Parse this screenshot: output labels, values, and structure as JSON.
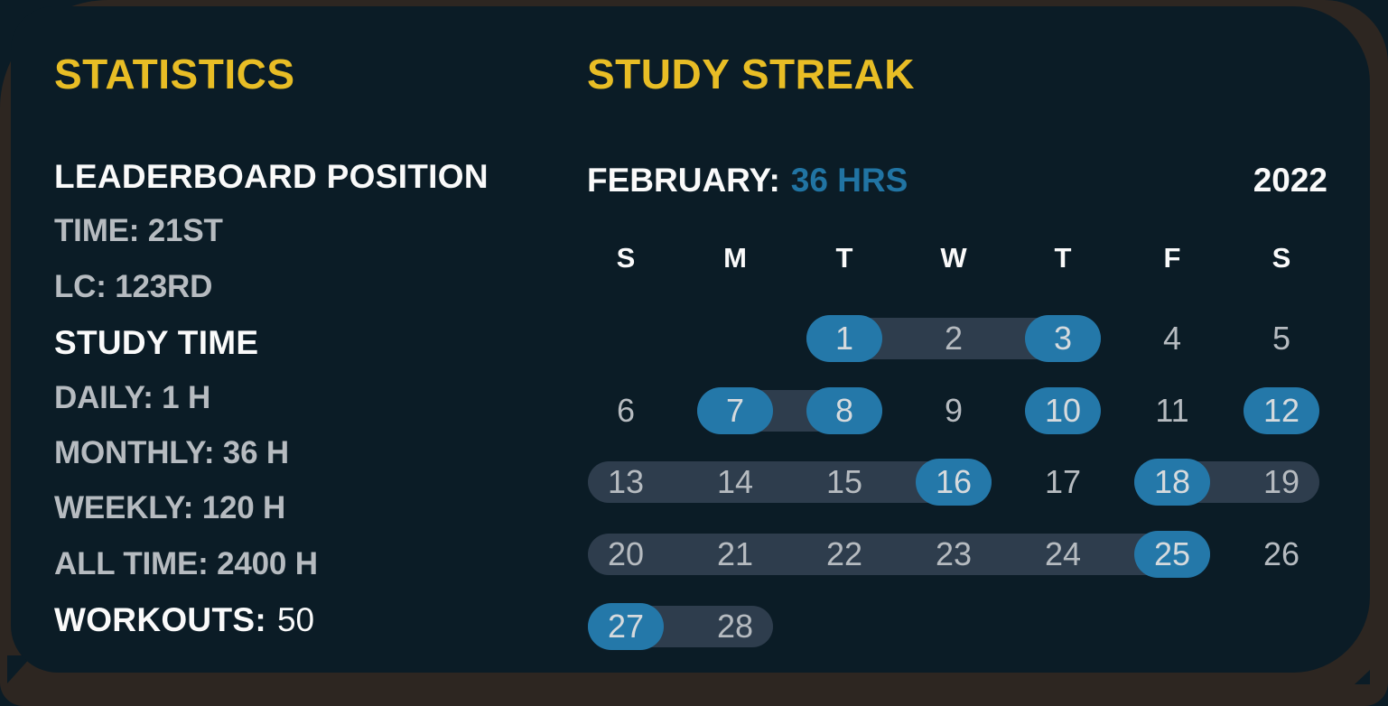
{
  "colors": {
    "page_background": "#2d2621",
    "card_background": "#0b1c26",
    "accent_yellow": "#e8bd25",
    "accent_blue": "#2174a3",
    "day_highlight_blue": "#2478a9",
    "range_band": "#2e3d4d",
    "text_white": "#fafafa",
    "text_gray": "#b6bbc0"
  },
  "statistics": {
    "title": "STATISTICS",
    "rows": [
      {
        "style": "heading",
        "text": "LEADERBOARD POSITION"
      },
      {
        "style": "stat",
        "text": "TIME: 21ST"
      },
      {
        "style": "stat",
        "text": "LC: 123RD"
      },
      {
        "style": "heading",
        "text": "STUDY TIME"
      },
      {
        "style": "stat",
        "text": "DAILY: 1 H"
      },
      {
        "style": "stat",
        "text": "MONTHLY: 36 H"
      },
      {
        "style": "stat",
        "text": "WEEKLY: 120 H"
      },
      {
        "style": "stat",
        "text": "ALL TIME: 2400 H"
      },
      {
        "style": "mixed",
        "label": "WORKOUTS:",
        "value": "50"
      }
    ]
  },
  "streak": {
    "title": "STUDY STREAK",
    "month_label": "FEBRUARY:",
    "month_total": "36 HRS",
    "year": "2022",
    "day_headers": [
      "S",
      "M",
      "T",
      "W",
      "T",
      "F",
      "S"
    ],
    "highlighted_days": [
      1,
      3,
      7,
      8,
      10,
      12,
      16,
      18,
      25,
      27
    ],
    "weeks": [
      {
        "bands": [
          {
            "from": 2,
            "to": 4
          }
        ],
        "days": [
          {
            "n": 1,
            "col": 2,
            "hl": true
          },
          {
            "n": 2,
            "col": 3,
            "hl": false
          },
          {
            "n": 3,
            "col": 4,
            "hl": true
          },
          {
            "n": 4,
            "col": 5,
            "hl": false
          },
          {
            "n": 5,
            "col": 6,
            "hl": false
          }
        ]
      },
      {
        "bands": [
          {
            "from": 1,
            "to": 2
          }
        ],
        "days": [
          {
            "n": 6,
            "col": 0,
            "hl": false
          },
          {
            "n": 7,
            "col": 1,
            "hl": true
          },
          {
            "n": 8,
            "col": 2,
            "hl": true
          },
          {
            "n": 9,
            "col": 3,
            "hl": false
          },
          {
            "n": 10,
            "col": 4,
            "hl": true
          },
          {
            "n": 11,
            "col": 5,
            "hl": false
          },
          {
            "n": 12,
            "col": 6,
            "hl": true
          }
        ]
      },
      {
        "bands": [
          {
            "from": 0,
            "to": 3
          },
          {
            "from": 5,
            "to": 6
          }
        ],
        "days": [
          {
            "n": 13,
            "col": 0,
            "hl": false
          },
          {
            "n": 14,
            "col": 1,
            "hl": false
          },
          {
            "n": 15,
            "col": 2,
            "hl": false
          },
          {
            "n": 16,
            "col": 3,
            "hl": true
          },
          {
            "n": 17,
            "col": 4,
            "hl": false
          },
          {
            "n": 18,
            "col": 5,
            "hl": true
          },
          {
            "n": 19,
            "col": 6,
            "hl": false
          }
        ]
      },
      {
        "bands": [
          {
            "from": 0,
            "to": 5
          }
        ],
        "days": [
          {
            "n": 20,
            "col": 0,
            "hl": false
          },
          {
            "n": 21,
            "col": 1,
            "hl": false
          },
          {
            "n": 22,
            "col": 2,
            "hl": false
          },
          {
            "n": 23,
            "col": 3,
            "hl": false
          },
          {
            "n": 24,
            "col": 4,
            "hl": false
          },
          {
            "n": 25,
            "col": 5,
            "hl": true
          },
          {
            "n": 26,
            "col": 6,
            "hl": false
          }
        ]
      },
      {
        "bands": [
          {
            "from": 0,
            "to": 1
          }
        ],
        "days": [
          {
            "n": 27,
            "col": 0,
            "hl": true
          },
          {
            "n": 28,
            "col": 1,
            "hl": false
          }
        ]
      }
    ]
  }
}
